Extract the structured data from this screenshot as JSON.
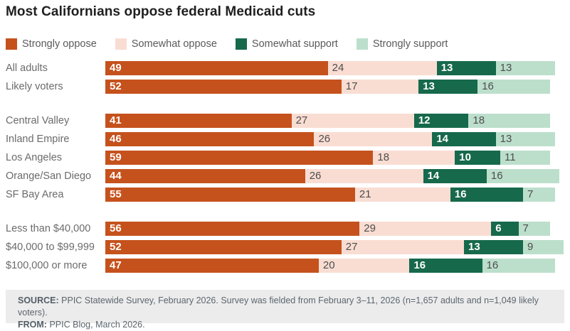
{
  "title": "Most Californians oppose federal Medicaid cuts",
  "chart_data": {
    "type": "bar",
    "orientation": "horizontal-stacked",
    "xlim": [
      0,
      100
    ],
    "unit": "percent",
    "grid": false,
    "legend_position": "top-left",
    "series": [
      {
        "name": "Strongly oppose",
        "color": "#C5521D",
        "label_style": "dark"
      },
      {
        "name": "Somewhat oppose",
        "color": "#F9DDD3",
        "label_style": "light"
      },
      {
        "name": "Somewhat support",
        "color": "#17694C",
        "label_style": "dark"
      },
      {
        "name": "Strongly support",
        "color": "#BCDFCC",
        "label_style": "light"
      }
    ],
    "groups": [
      {
        "rows": [
          {
            "label": "All adults",
            "values": [
              49,
              24,
              13,
              13
            ]
          },
          {
            "label": "Likely voters",
            "values": [
              52,
              17,
              13,
              16
            ]
          }
        ]
      },
      {
        "rows": [
          {
            "label": "Central Valley",
            "values": [
              41,
              27,
              12,
              18
            ]
          },
          {
            "label": "Inland Empire",
            "values": [
              46,
              26,
              14,
              13
            ]
          },
          {
            "label": "Los Angeles",
            "values": [
              59,
              18,
              10,
              11
            ]
          },
          {
            "label": "Orange/San Diego",
            "values": [
              44,
              26,
              14,
              16
            ]
          },
          {
            "label": "SF Bay Area",
            "values": [
              55,
              21,
              16,
              7
            ]
          }
        ]
      },
      {
        "rows": [
          {
            "label": "Less than $40,000",
            "values": [
              56,
              29,
              6,
              7
            ]
          },
          {
            "label": "$40,000 to $99,999",
            "values": [
              52,
              27,
              13,
              9
            ]
          },
          {
            "label": "$100,000 or more",
            "values": [
              47,
              20,
              16,
              16
            ]
          }
        ]
      }
    ]
  },
  "footer": {
    "source_label": "SOURCE:",
    "source_text": "PPIC Statewide Survey, February 2026. Survey was fielded from February 3–11, 2026 (n=1,657 adults and n=1,049 likely voters).",
    "from_label": "FROM:",
    "from_text": "PPIC Blog, March 2026."
  }
}
